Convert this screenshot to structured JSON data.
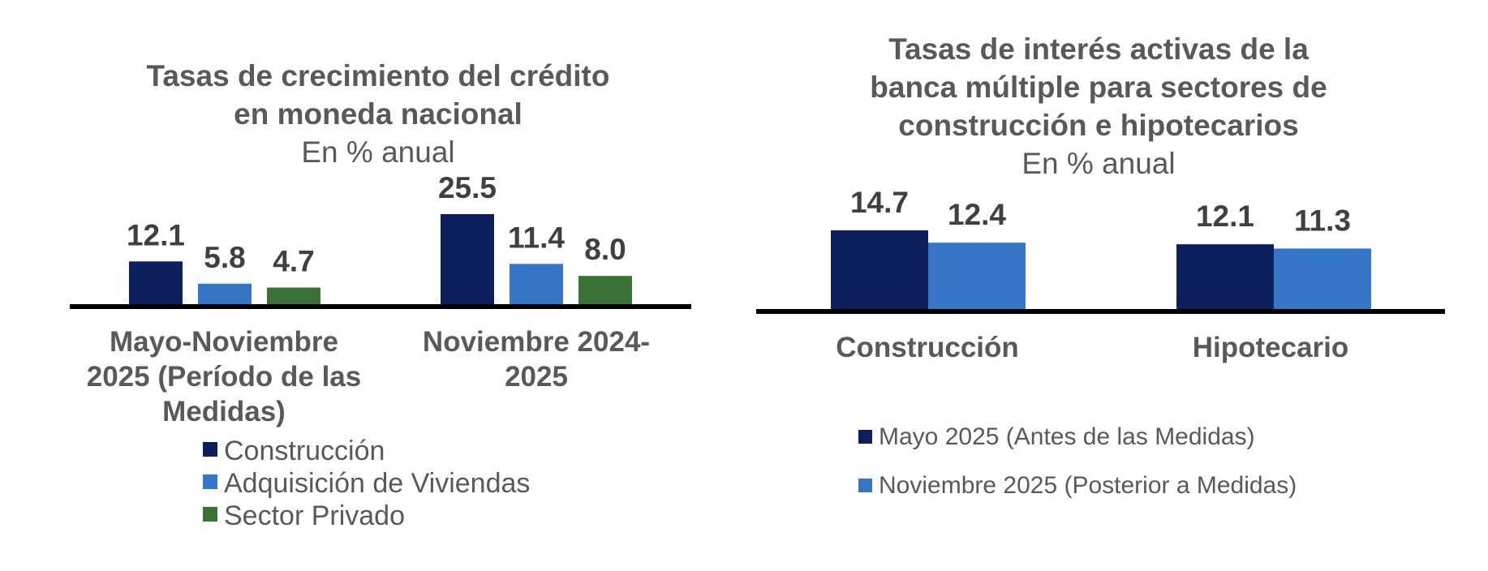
{
  "chart_data": [
    {
      "type": "bar",
      "title_lines": [
        "Tasas de crecimiento del crédito",
        "en moneda nacional"
      ],
      "subtitle": "En % anual",
      "categories": [
        "Mayo-Noviembre 2025 (Período de las Medidas)",
        "Noviembre 2024-2025"
      ],
      "category_lines": [
        [
          "Mayo-Noviembre",
          "2025 (Período de las",
          "Medidas)"
        ],
        [
          "Noviembre 2024-",
          "2025"
        ]
      ],
      "series": [
        {
          "name": "Construcción",
          "values": [
            12.1,
            25.5
          ],
          "labels": [
            "12.1",
            "25.5"
          ],
          "color": "#0D1F5C"
        },
        {
          "name": "Adquisición de Viviendas",
          "values": [
            5.8,
            11.4
          ],
          "labels": [
            "5.8",
            "11.4"
          ],
          "color": "#3576C8"
        },
        {
          "name": "Sector Privado",
          "values": [
            4.7,
            8.0
          ],
          "labels": [
            "4.7",
            "8.0"
          ],
          "color": "#3A7135"
        }
      ],
      "ylim": [
        0,
        25.5
      ],
      "grid": false,
      "legend_position": "bottom"
    },
    {
      "type": "bar",
      "title_lines": [
        "Tasas de interés activas de la",
        "banca múltiple para sectores de",
        "construcción e hipotecarios"
      ],
      "subtitle": "En % anual",
      "categories": [
        "Construcción",
        "Hipotecario"
      ],
      "category_lines": [
        [
          "Construcción"
        ],
        [
          "Hipotecario"
        ]
      ],
      "series": [
        {
          "name": "Mayo 2025 (Antes de las Medidas)",
          "values": [
            14.7,
            12.1
          ],
          "labels": [
            "14.7",
            "12.1"
          ],
          "color": "#0D1F5C"
        },
        {
          "name": "Noviembre 2025 (Posterior a Medidas)",
          "values": [
            12.4,
            11.3
          ],
          "labels": [
            "12.4",
            "11.3"
          ],
          "color": "#3576C8"
        }
      ],
      "ylim": [
        0,
        14.7
      ],
      "grid": false,
      "legend_position": "bottom"
    }
  ]
}
